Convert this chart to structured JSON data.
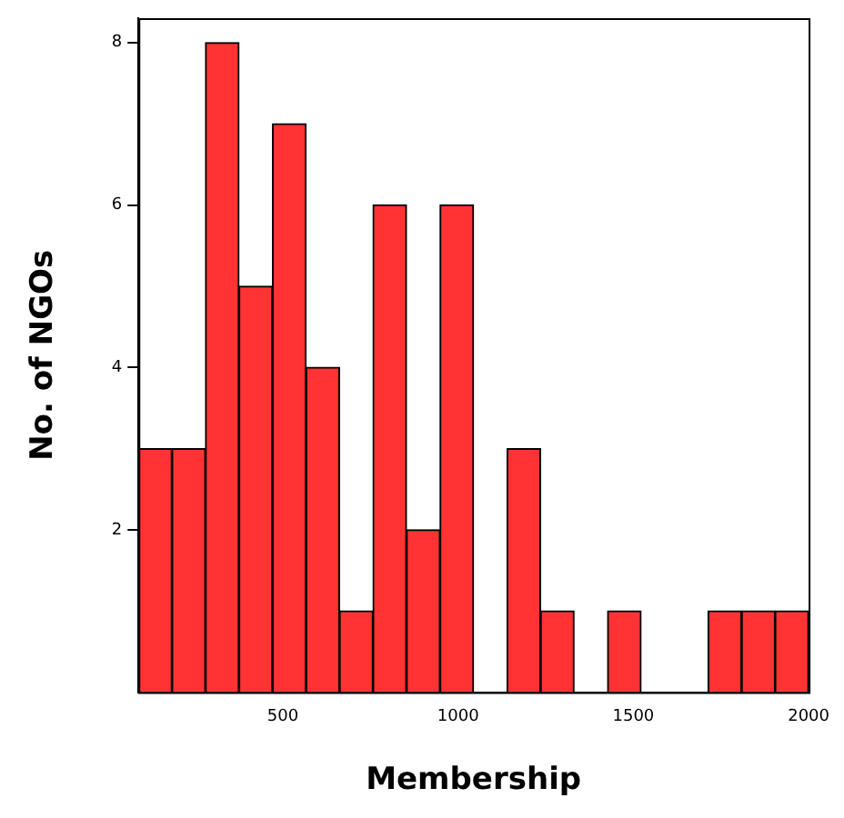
{
  "chart_data": {
    "type": "histogram",
    "xlabel": "Membership",
    "ylabel": "No. of NGOs",
    "bins": [
      88,
      183.6,
      279.2,
      374.8,
      470.4,
      566,
      661.6,
      757.2,
      852.8,
      948.4,
      1044,
      1139.6,
      1235.2,
      1330.8,
      1426.4,
      1522,
      1617.6,
      1713.2,
      1808.8,
      1904.4,
      2000
    ],
    "values": [
      3,
      3,
      8,
      5,
      7,
      4,
      1,
      6,
      2,
      6,
      0,
      3,
      1,
      0,
      1,
      0,
      0,
      1,
      1,
      1
    ],
    "color": "#ff3333",
    "xlim": [
      88,
      2000
    ],
    "xticks": [
      500,
      1000,
      1500,
      2000
    ],
    "ylim": [
      0,
      8.3
    ],
    "yticks": [
      2,
      4,
      6,
      8
    ],
    "grid": false,
    "legend": false
  }
}
